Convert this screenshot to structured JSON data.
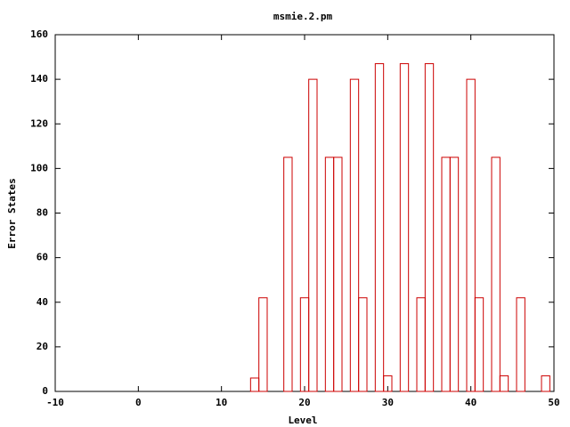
{
  "chart_data": {
    "type": "bar",
    "title": "msmie.2.pm",
    "x_label": "Level",
    "y_label": "Error States",
    "x": [
      14,
      15,
      18,
      20,
      21,
      23,
      24,
      26,
      27,
      29,
      30,
      32,
      34,
      35,
      37,
      38,
      40,
      41,
      43,
      44,
      46,
      49
    ],
    "values": [
      6,
      42,
      105,
      42,
      140,
      105,
      105,
      140,
      42,
      147,
      7,
      147,
      42,
      147,
      105,
      105,
      140,
      42,
      105,
      7,
      42,
      7
    ],
    "color": "#cc0000",
    "bar_width": 1,
    "xlim": [
      -10,
      50
    ],
    "xticks": [
      -10,
      0,
      10,
      20,
      30,
      40,
      50
    ],
    "ylim": [
      0,
      160
    ],
    "yticks": [
      0,
      20,
      40,
      60,
      80,
      100,
      120,
      140,
      160
    ]
  }
}
